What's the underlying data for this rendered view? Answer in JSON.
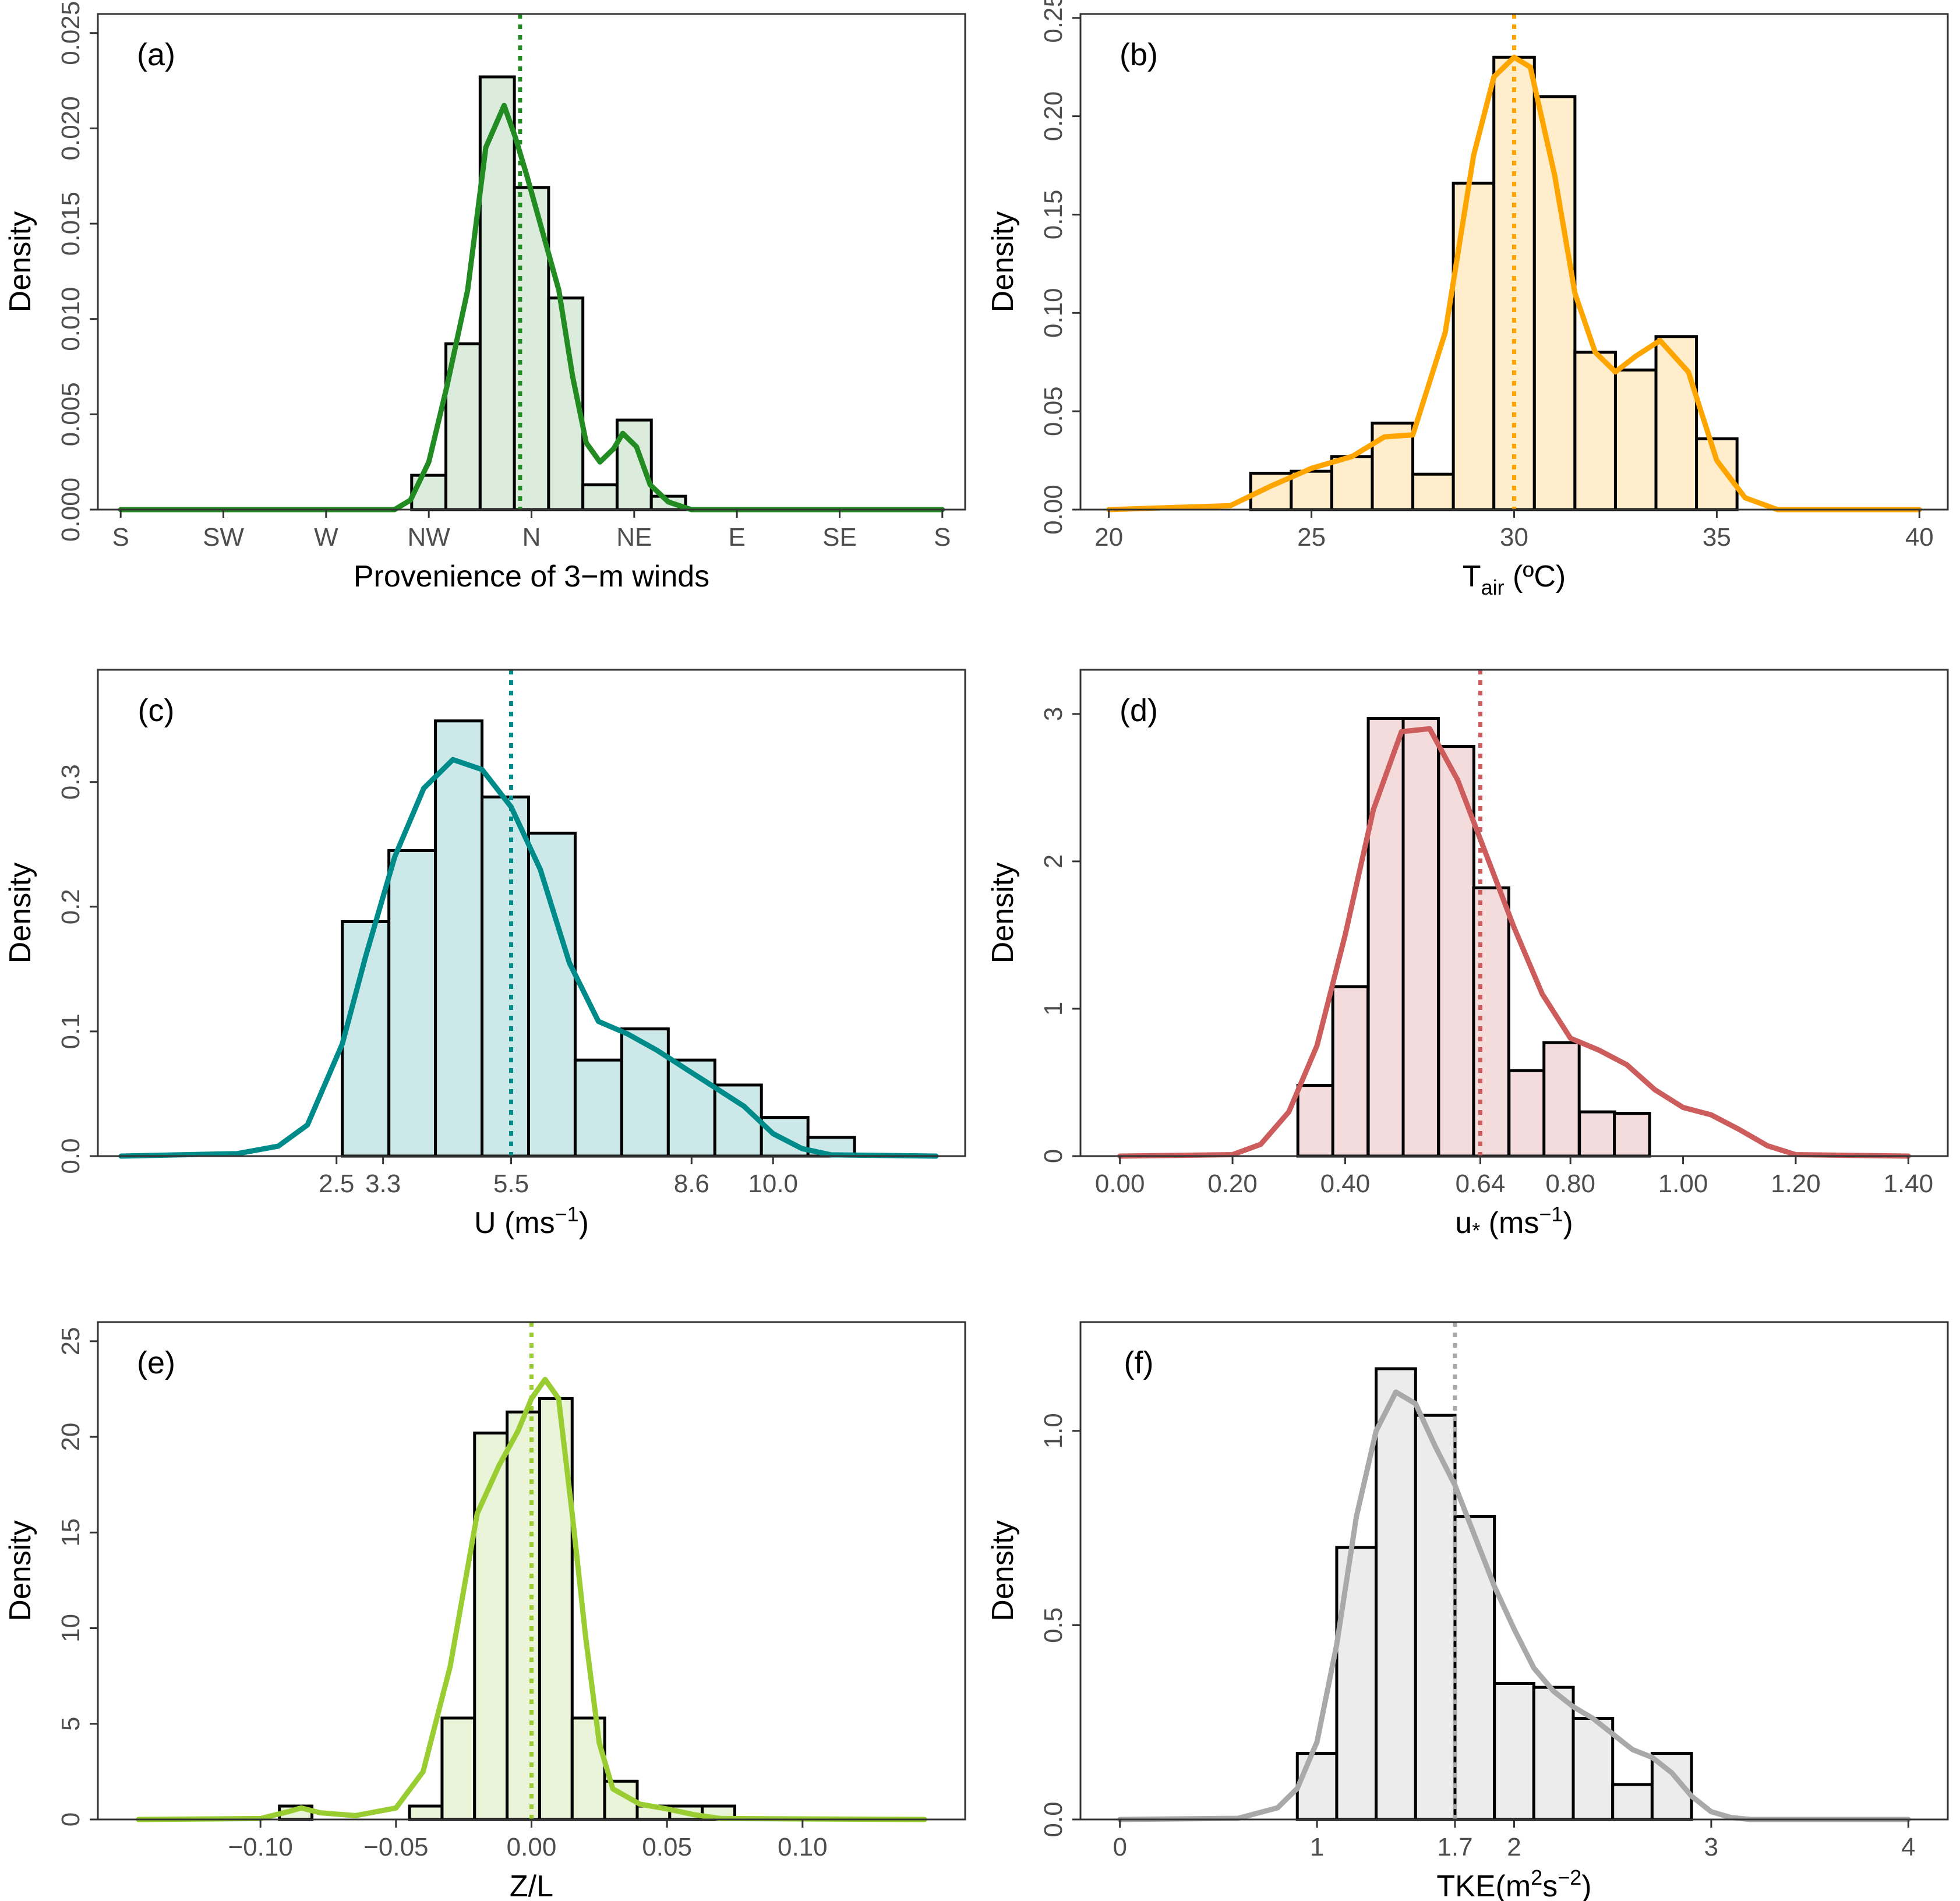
{
  "chart_data": [
    {
      "type": "bar",
      "panel_label": "(a)",
      "color": "#228B22",
      "fill": "#dcecdc",
      "xlabel": "Provenience of 3−m winds",
      "ylabel": "Density",
      "xlim": [
        -190,
        190
      ],
      "ylim": [
        0,
        0.026
      ],
      "xticks": [
        {
          "value": -180,
          "label": "S"
        },
        {
          "value": -135,
          "label": "SW"
        },
        {
          "value": -90,
          "label": "W"
        },
        {
          "value": -45,
          "label": "NW"
        },
        {
          "value": 0,
          "label": "N"
        },
        {
          "value": 45,
          "label": "NE"
        },
        {
          "value": 90,
          "label": "E"
        },
        {
          "value": 135,
          "label": "SE"
        },
        {
          "value": 180,
          "label": "S"
        }
      ],
      "yticks": [
        {
          "value": 0,
          "label": "0.000"
        },
        {
          "value": 0.005,
          "label": "0.005"
        },
        {
          "value": 0.01,
          "label": "0.010"
        },
        {
          "value": 0.015,
          "label": "0.015"
        },
        {
          "value": 0.02,
          "label": "0.020"
        },
        {
          "value": 0.025,
          "label": "0.025"
        }
      ],
      "bin_width": 15,
      "bins": [
        {
          "start": -52.5,
          "value": 0.0018
        },
        {
          "start": -37.5,
          "value": 0.0087
        },
        {
          "start": -22.5,
          "value": 0.0227
        },
        {
          "start": -7.5,
          "value": 0.0169
        },
        {
          "start": 7.5,
          "value": 0.0111
        },
        {
          "start": 22.5,
          "value": 0.0013
        },
        {
          "start": 37.5,
          "value": 0.0047
        },
        {
          "start": 52.5,
          "value": 0.0007
        }
      ],
      "density": {
        "x": [
          -180,
          -60,
          -53,
          -45,
          -37,
          -28,
          -20,
          -12,
          -7,
          -2,
          5,
          12,
          18,
          24,
          30,
          36,
          40,
          46,
          52,
          60,
          70,
          180
        ],
        "y": [
          0,
          0,
          0.0005,
          0.0025,
          0.0065,
          0.0115,
          0.019,
          0.0212,
          0.0195,
          0.0175,
          0.0145,
          0.0115,
          0.007,
          0.0035,
          0.0025,
          0.0032,
          0.004,
          0.0033,
          0.0013,
          0.0004,
          0,
          0
        ]
      },
      "mean_line": -5
    },
    {
      "type": "bar",
      "panel_label": "(b)",
      "color": "#FFA500",
      "fill": "#ffedcc",
      "xlabel_main": "T",
      "xlabel_sub": "air",
      "xlabel_rest": " (ºC)",
      "ylabel": "Density",
      "xlim": [
        19.3,
        40.7
      ],
      "ylim": [
        0,
        0.252
      ],
      "xticks": [
        {
          "value": 20,
          "label": "20"
        },
        {
          "value": 25,
          "label": "25"
        },
        {
          "value": 30,
          "label": "30"
        },
        {
          "value": 35,
          "label": "35"
        },
        {
          "value": 40,
          "label": "40"
        }
      ],
      "yticks": [
        {
          "value": 0,
          "label": "0.00"
        },
        {
          "value": 0.05,
          "label": "0.05"
        },
        {
          "value": 0.1,
          "label": "0.10"
        },
        {
          "value": 0.15,
          "label": "0.15"
        },
        {
          "value": 0.2,
          "label": "0.20"
        },
        {
          "value": 0.25,
          "label": "0.25"
        }
      ],
      "bin_width": 1,
      "bins": [
        {
          "start": 23.5,
          "value": 0.0185
        },
        {
          "start": 24.5,
          "value": 0.0195
        },
        {
          "start": 25.5,
          "value": 0.027
        },
        {
          "start": 26.5,
          "value": 0.044
        },
        {
          "start": 27.5,
          "value": 0.018
        },
        {
          "start": 28.5,
          "value": 0.166
        },
        {
          "start": 29.5,
          "value": 0.23
        },
        {
          "start": 30.5,
          "value": 0.21
        },
        {
          "start": 31.5,
          "value": 0.08
        },
        {
          "start": 32.5,
          "value": 0.071
        },
        {
          "start": 33.5,
          "value": 0.088
        },
        {
          "start": 34.5,
          "value": 0.036
        }
      ],
      "density": {
        "x": [
          20,
          23,
          24,
          25,
          26,
          26.8,
          27.5,
          28.3,
          29,
          29.5,
          30,
          30.4,
          31,
          31.5,
          32,
          32.5,
          33,
          33.6,
          34.3,
          35,
          35.7,
          36.5,
          40
        ],
        "y": [
          0,
          0.002,
          0.012,
          0.021,
          0.027,
          0.037,
          0.038,
          0.09,
          0.18,
          0.22,
          0.23,
          0.225,
          0.17,
          0.11,
          0.08,
          0.07,
          0.078,
          0.086,
          0.07,
          0.025,
          0.006,
          0,
          0
        ]
      },
      "mean_line": 30
    },
    {
      "type": "bar",
      "panel_label": "(c)",
      "color": "#008B8B",
      "fill": "#cde8e8",
      "xlabel": "U (ms",
      "xlabel_sup": "−1",
      "xlabel_end": ")",
      "ylabel": "Density",
      "xlim": [
        -1.6,
        13.3
      ],
      "ylim": [
        0,
        0.39
      ],
      "xticks": [
        {
          "value": 2.5,
          "label": "2.5"
        },
        {
          "value": 3.3,
          "label": "3.3"
        },
        {
          "value": 5.5,
          "label": "5.5"
        },
        {
          "value": 8.6,
          "label": "8.6"
        },
        {
          "value": 10.0,
          "label": "10.0"
        }
      ],
      "yticks": [
        {
          "value": 0,
          "label": "0.0"
        },
        {
          "value": 0.1,
          "label": "0.1"
        },
        {
          "value": 0.2,
          "label": "0.2"
        },
        {
          "value": 0.3,
          "label": "0.3"
        }
      ],
      "bin_width": 0.8,
      "bins": [
        {
          "start": 2.6,
          "value": 0.188
        },
        {
          "start": 3.4,
          "value": 0.245
        },
        {
          "start": 4.2,
          "value": 0.349
        },
        {
          "start": 5.0,
          "value": 0.288
        },
        {
          "start": 5.8,
          "value": 0.259
        },
        {
          "start": 6.6,
          "value": 0.077
        },
        {
          "start": 7.4,
          "value": 0.102
        },
        {
          "start": 8.2,
          "value": 0.077
        },
        {
          "start": 9.0,
          "value": 0.057
        },
        {
          "start": 9.8,
          "value": 0.031
        },
        {
          "start": 10.6,
          "value": 0.015
        }
      ],
      "density": {
        "x": [
          -1.2,
          0.8,
          1.5,
          2,
          2.6,
          3,
          3.5,
          4,
          4.5,
          5,
          5.5,
          6,
          6.5,
          7,
          7.5,
          8,
          8.5,
          9,
          9.5,
          10,
          10.5,
          11,
          12.8
        ],
        "y": [
          0,
          0.002,
          0.008,
          0.025,
          0.09,
          0.16,
          0.24,
          0.295,
          0.318,
          0.31,
          0.28,
          0.23,
          0.155,
          0.108,
          0.098,
          0.085,
          0.07,
          0.055,
          0.04,
          0.018,
          0.006,
          0.001,
          0
        ]
      },
      "mean_line": 5.5
    },
    {
      "type": "bar",
      "panel_label": "(d)",
      "color": "#CD5C5C",
      "fill": "#f5dcdc",
      "xlabel": "u",
      "xlabel_sub": "*",
      "xlabel_rest": " (ms",
      "xlabel_sup": "−1",
      "xlabel_end": ")",
      "ylabel": "Density",
      "xlim": [
        -0.07,
        1.47
      ],
      "ylim": [
        0,
        3.3
      ],
      "xticks": [
        {
          "value": 0,
          "label": "0.00"
        },
        {
          "value": 0.2,
          "label": "0.20"
        },
        {
          "value": 0.4,
          "label": "0.40"
        },
        {
          "value": 0.64,
          "label": "0.64"
        },
        {
          "value": 0.8,
          "label": "0.80"
        },
        {
          "value": 1.0,
          "label": "1.00"
        },
        {
          "value": 1.2,
          "label": "1.20"
        },
        {
          "value": 1.4,
          "label": "1.40"
        }
      ],
      "yticks": [
        {
          "value": 0,
          "label": "0"
        },
        {
          "value": 1,
          "label": "1"
        },
        {
          "value": 2,
          "label": "2"
        },
        {
          "value": 3,
          "label": "3"
        }
      ],
      "bin_width": 0.0625,
      "bins": [
        {
          "start": 0.316,
          "value": 0.48
        },
        {
          "start": 0.378,
          "value": 1.15
        },
        {
          "start": 0.441,
          "value": 2.97
        },
        {
          "start": 0.503,
          "value": 2.97
        },
        {
          "start": 0.566,
          "value": 2.78
        },
        {
          "start": 0.628,
          "value": 1.82
        },
        {
          "start": 0.691,
          "value": 0.58
        },
        {
          "start": 0.753,
          "value": 0.77
        },
        {
          "start": 0.816,
          "value": 0.3
        },
        {
          "start": 0.878,
          "value": 0.29
        }
      ],
      "density": {
        "x": [
          0,
          0.2,
          0.25,
          0.3,
          0.35,
          0.4,
          0.45,
          0.5,
          0.55,
          0.6,
          0.65,
          0.7,
          0.75,
          0.8,
          0.85,
          0.9,
          0.95,
          1.0,
          1.05,
          1.1,
          1.15,
          1.2,
          1.4
        ],
        "y": [
          0,
          0.01,
          0.08,
          0.3,
          0.75,
          1.5,
          2.35,
          2.88,
          2.9,
          2.55,
          2.05,
          1.55,
          1.1,
          0.8,
          0.72,
          0.62,
          0.45,
          0.33,
          0.28,
          0.18,
          0.07,
          0.01,
          0
        ]
      },
      "mean_line": 0.64
    },
    {
      "type": "bar",
      "panel_label": "(e)",
      "color": "#9ACD32",
      "fill": "#e9f4d9",
      "xlabel": "Z/L",
      "ylabel": "Density",
      "xlim": [
        -0.16,
        0.16
      ],
      "ylim": [
        0,
        26
      ],
      "xticks": [
        {
          "value": -0.1,
          "label": "−0.10"
        },
        {
          "value": -0.05,
          "label": "−0.05"
        },
        {
          "value": 0,
          "label": "0.00"
        },
        {
          "value": 0.05,
          "label": "0.05"
        },
        {
          "value": 0.1,
          "label": "0.10"
        }
      ],
      "yticks": [
        {
          "value": 0,
          "label": "0"
        },
        {
          "value": 5,
          "label": "5"
        },
        {
          "value": 10,
          "label": "10"
        },
        {
          "value": 15,
          "label": "15"
        },
        {
          "value": 20,
          "label": "20"
        },
        {
          "value": 25,
          "label": "25"
        }
      ],
      "bin_width": 0.012,
      "bins": [
        {
          "start": -0.093,
          "value": 0.7
        },
        {
          "start": -0.045,
          "value": 0.7
        },
        {
          "start": -0.033,
          "value": 5.3
        },
        {
          "start": -0.021,
          "value": 20.2
        },
        {
          "start": -0.009,
          "value": 21.3
        },
        {
          "start": 0.003,
          "value": 22.0
        },
        {
          "start": 0.015,
          "value": 5.3
        },
        {
          "start": 0.027,
          "value": 2.0
        },
        {
          "start": 0.039,
          "value": 0.7
        },
        {
          "start": 0.051,
          "value": 0.7
        },
        {
          "start": 0.063,
          "value": 0.7
        }
      ],
      "density": {
        "x": [
          -0.145,
          -0.1,
          -0.09,
          -0.085,
          -0.078,
          -0.065,
          -0.05,
          -0.04,
          -0.03,
          -0.02,
          -0.012,
          -0.005,
          0.0,
          0.005,
          0.01,
          0.015,
          0.02,
          0.025,
          0.03,
          0.04,
          0.05,
          0.06,
          0.07,
          0.145
        ],
        "y": [
          0,
          0.05,
          0.4,
          0.6,
          0.35,
          0.2,
          0.6,
          2.5,
          8.0,
          16.0,
          18.5,
          20.3,
          22.0,
          23.0,
          22.0,
          16.0,
          9.5,
          4.0,
          1.6,
          0.8,
          0.55,
          0.25,
          0.05,
          0
        ]
      },
      "mean_line": 0
    },
    {
      "type": "bar",
      "panel_label": "(f)",
      "color": "#A9A9A9",
      "fill": "#ececec",
      "xlabel": "TKE(m",
      "xlabel_sup1": "2",
      "xlabel_mid": "s",
      "xlabel_sup2": "−2",
      "xlabel_end": ")",
      "ylabel": "Density",
      "xlim": [
        -0.2,
        4.2
      ],
      "ylim": [
        0,
        1.28
      ],
      "xticks": [
        {
          "value": 0,
          "label": "0"
        },
        {
          "value": 1,
          "label": "1"
        },
        {
          "value": 1.7,
          "label": "1.7"
        },
        {
          "value": 2,
          "label": "2"
        },
        {
          "value": 3,
          "label": "3"
        },
        {
          "value": 4,
          "label": "4"
        }
      ],
      "yticks": [
        {
          "value": 0,
          "label": "0.0"
        },
        {
          "value": 0.5,
          "label": "0.5"
        },
        {
          "value": 1.0,
          "label": "1.0"
        }
      ],
      "bin_width": 0.2,
      "bins": [
        {
          "start": 0.9,
          "value": 0.17
        },
        {
          "start": 1.1,
          "value": 0.7
        },
        {
          "start": 1.3,
          "value": 1.16
        },
        {
          "start": 1.5,
          "value": 1.04
        },
        {
          "start": 1.7,
          "value": 0.78
        },
        {
          "start": 1.9,
          "value": 0.35
        },
        {
          "start": 2.1,
          "value": 0.34
        },
        {
          "start": 2.3,
          "value": 0.26
        },
        {
          "start": 2.5,
          "value": 0.09
        },
        {
          "start": 2.7,
          "value": 0.17
        }
      ],
      "density": {
        "x": [
          0,
          0.6,
          0.8,
          0.9,
          1.0,
          1.1,
          1.2,
          1.3,
          1.4,
          1.5,
          1.6,
          1.7,
          1.8,
          1.9,
          2.0,
          2.1,
          2.2,
          2.3,
          2.4,
          2.5,
          2.6,
          2.7,
          2.8,
          2.9,
          3.0,
          3.1,
          3.2,
          4.0
        ],
        "y": [
          0,
          0.003,
          0.03,
          0.08,
          0.2,
          0.45,
          0.78,
          1.0,
          1.1,
          1.07,
          0.96,
          0.86,
          0.73,
          0.6,
          0.49,
          0.39,
          0.33,
          0.29,
          0.26,
          0.22,
          0.18,
          0.16,
          0.12,
          0.06,
          0.02,
          0.005,
          0,
          0
        ]
      },
      "mean_line": 1.7
    }
  ]
}
